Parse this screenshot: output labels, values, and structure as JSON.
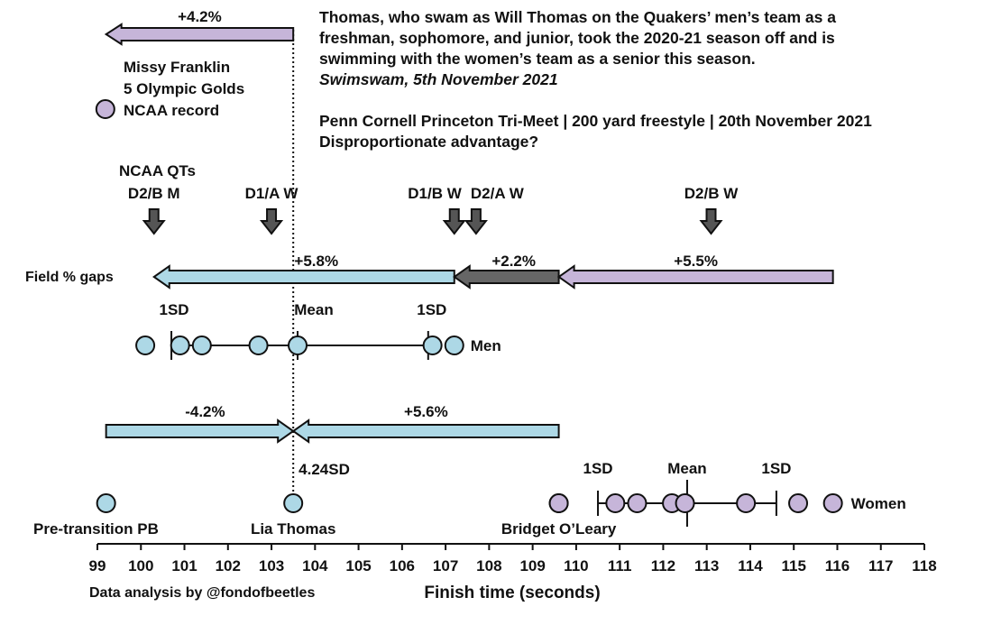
{
  "quote": {
    "lines": [
      "Thomas, who swam as Will Thomas on the Quakers’ men’s team as a",
      "freshman, sophomore, and junior, took the 2020-21 season off and is",
      "swimming with the women’s team as a senior this season."
    ],
    "source": "Swimswam, 5th November 2021",
    "event": "Penn Cornell Princeton Tri-Meet | 200 yard freestyle | 20th November 2021",
    "question": "Disproportionate advantage?"
  },
  "chart_data": {
    "type": "scatter",
    "xlabel": "Finish time (seconds)",
    "credit": "Data analysis by @fondofbeetles",
    "xlim": [
      99,
      118
    ],
    "x_ticks": [
      "99",
      "100",
      "101",
      "102",
      "103",
      "104",
      "105",
      "106",
      "107",
      "108",
      "109",
      "110",
      "111",
      "112",
      "113",
      "114",
      "115",
      "116",
      "117",
      "118"
    ],
    "reference_line_x": 103.5,
    "colors": {
      "men": "#add8e6",
      "women": "#c6b5d9",
      "neutral": "#666666",
      "outline": "#111111"
    },
    "franklin": {
      "arrow_label": "+4.2%",
      "arrow_from": 103.5,
      "arrow_to": 99.2,
      "legend_lines": [
        "Missy Franklin",
        "5 Olympic Golds",
        "NCAA record"
      ],
      "marker_x": 99.1
    },
    "qualifying_times": {
      "title": "NCAA QTs",
      "markers": [
        {
          "label": "D2/B M",
          "x": 100.3
        },
        {
          "label": "D1/A W",
          "x": 103.0
        },
        {
          "label": "D1/B W",
          "x": 107.2
        },
        {
          "label": "D2/A W",
          "x": 107.7
        },
        {
          "label": "D2/B W",
          "x": 113.1
        }
      ]
    },
    "field_gaps": {
      "label": "Field % gaps",
      "segments": [
        {
          "label": "+5.8%",
          "from": 107.2,
          "to": 100.3,
          "color": "men"
        },
        {
          "label": "+2.2%",
          "from": 109.6,
          "to": 107.2,
          "color": "neutral"
        },
        {
          "label": "+5.5%",
          "from": 115.9,
          "to": 109.6,
          "color": "women"
        }
      ]
    },
    "men": {
      "name": "Men",
      "times": [
        100.1,
        100.9,
        101.4,
        102.7,
        103.6,
        106.7,
        107.2
      ],
      "mean": 103.6,
      "sd_low": 100.7,
      "sd_high": 106.6,
      "mean_label": "Mean",
      "sd_label": "1SD"
    },
    "thomas_comparison": {
      "left": {
        "label": "-4.2%",
        "from": 103.5,
        "to": 99.2
      },
      "right": {
        "label": "+5.6%",
        "from": 103.5,
        "to": 109.6
      },
      "sd_label": "4.24SD"
    },
    "women": {
      "name": "Women",
      "times": [
        109.6,
        110.9,
        111.4,
        112.2,
        112.5,
        113.9,
        115.1,
        115.9
      ],
      "mean": 112.55,
      "sd_low": 110.5,
      "sd_high": 114.6,
      "mean_label": "Mean",
      "sd_label": "1SD"
    },
    "labelled_points": [
      {
        "label": "Pre-transition PB",
        "x": 99.2,
        "group": "men"
      },
      {
        "label": "Lia Thomas",
        "x": 103.5,
        "group": "men"
      },
      {
        "label": "Bridget O’Leary",
        "x": 109.6,
        "group": "women"
      }
    ]
  }
}
